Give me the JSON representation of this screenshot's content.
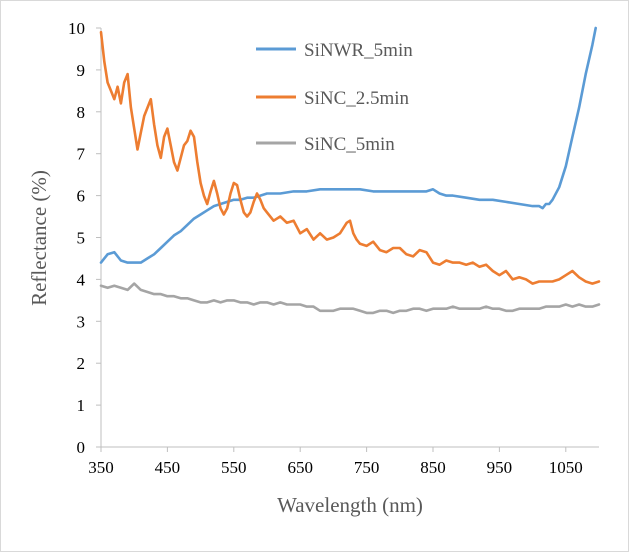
{
  "chart_data": {
    "type": "line",
    "title": "",
    "xlabel": "Wavelength (nm)",
    "ylabel": "Reflectance (%)",
    "xlim": [
      350,
      1100
    ],
    "ylim": [
      0,
      10
    ],
    "x_ticks": [
      350,
      450,
      550,
      650,
      750,
      850,
      950,
      1050
    ],
    "y_ticks": [
      0,
      1,
      2,
      3,
      4,
      5,
      6,
      7,
      8,
      9,
      10
    ],
    "grid": false,
    "legend_position": "top-center",
    "series": [
      {
        "name": "SiNWR_5min",
        "color": "#5b9bd5",
        "x": [
          350,
          360,
          370,
          380,
          390,
          400,
          410,
          420,
          430,
          440,
          450,
          460,
          470,
          480,
          490,
          500,
          510,
          520,
          530,
          540,
          550,
          560,
          570,
          580,
          590,
          600,
          620,
          640,
          660,
          680,
          700,
          720,
          740,
          760,
          780,
          800,
          820,
          840,
          850,
          860,
          870,
          880,
          900,
          920,
          940,
          960,
          980,
          1000,
          1005,
          1010,
          1015,
          1020,
          1025,
          1030,
          1040,
          1050,
          1060,
          1070,
          1080,
          1090,
          1095
        ],
        "y": [
          4.4,
          4.6,
          4.65,
          4.45,
          4.4,
          4.4,
          4.4,
          4.5,
          4.6,
          4.75,
          4.9,
          5.05,
          5.15,
          5.3,
          5.45,
          5.55,
          5.65,
          5.75,
          5.8,
          5.85,
          5.9,
          5.9,
          5.95,
          5.95,
          6.0,
          6.05,
          6.05,
          6.1,
          6.1,
          6.15,
          6.15,
          6.15,
          6.15,
          6.1,
          6.1,
          6.1,
          6.1,
          6.1,
          6.15,
          6.05,
          6.0,
          6.0,
          5.95,
          5.9,
          5.9,
          5.85,
          5.8,
          5.75,
          5.75,
          5.75,
          5.7,
          5.8,
          5.8,
          5.9,
          6.2,
          6.7,
          7.4,
          8.1,
          8.9,
          9.6,
          10.0
        ]
      },
      {
        "name": "SiNC_2.5min",
        "color": "#ed7d31",
        "x": [
          350,
          355,
          360,
          365,
          370,
          375,
          380,
          385,
          390,
          395,
          400,
          405,
          410,
          415,
          420,
          425,
          430,
          435,
          440,
          445,
          450,
          455,
          460,
          465,
          470,
          475,
          480,
          485,
          490,
          495,
          500,
          505,
          510,
          515,
          520,
          525,
          530,
          535,
          540,
          545,
          550,
          555,
          560,
          565,
          570,
          575,
          580,
          585,
          590,
          595,
          600,
          610,
          620,
          630,
          640,
          650,
          660,
          670,
          680,
          690,
          700,
          710,
          720,
          725,
          730,
          735,
          740,
          750,
          760,
          770,
          780,
          790,
          800,
          810,
          820,
          830,
          840,
          850,
          860,
          870,
          880,
          890,
          900,
          910,
          920,
          930,
          940,
          950,
          960,
          970,
          980,
          990,
          1000,
          1010,
          1020,
          1030,
          1040,
          1050,
          1060,
          1070,
          1080,
          1090,
          1100
        ],
        "y": [
          9.9,
          9.2,
          8.7,
          8.5,
          8.3,
          8.6,
          8.2,
          8.7,
          8.9,
          8.1,
          7.6,
          7.1,
          7.5,
          7.9,
          8.1,
          8.3,
          7.7,
          7.2,
          6.9,
          7.4,
          7.6,
          7.2,
          6.8,
          6.6,
          6.9,
          7.2,
          7.3,
          7.55,
          7.4,
          6.8,
          6.3,
          6.0,
          5.8,
          6.1,
          6.35,
          6.05,
          5.7,
          5.55,
          5.7,
          6.05,
          6.3,
          6.25,
          5.9,
          5.6,
          5.5,
          5.6,
          5.85,
          6.05,
          5.9,
          5.7,
          5.6,
          5.4,
          5.5,
          5.35,
          5.4,
          5.1,
          5.2,
          4.95,
          5.1,
          4.95,
          5.0,
          5.1,
          5.35,
          5.4,
          5.1,
          4.95,
          4.85,
          4.8,
          4.9,
          4.7,
          4.65,
          4.75,
          4.75,
          4.6,
          4.55,
          4.7,
          4.65,
          4.4,
          4.35,
          4.45,
          4.4,
          4.4,
          4.35,
          4.4,
          4.3,
          4.35,
          4.2,
          4.1,
          4.2,
          4.0,
          4.05,
          4.0,
          3.9,
          3.95,
          3.95,
          3.95,
          4.0,
          4.1,
          4.2,
          4.05,
          3.95,
          3.9,
          3.95
        ]
      },
      {
        "name": "SiNC_5min",
        "color": "#a5a5a5",
        "x": [
          350,
          360,
          370,
          380,
          390,
          400,
          410,
          420,
          430,
          440,
          450,
          460,
          470,
          480,
          490,
          500,
          510,
          520,
          530,
          540,
          550,
          560,
          570,
          580,
          590,
          600,
          610,
          620,
          630,
          640,
          650,
          660,
          670,
          680,
          690,
          700,
          710,
          720,
          730,
          740,
          750,
          760,
          770,
          780,
          790,
          800,
          810,
          820,
          830,
          840,
          850,
          860,
          870,
          880,
          890,
          900,
          910,
          920,
          930,
          940,
          950,
          960,
          970,
          980,
          990,
          1000,
          1010,
          1020,
          1030,
          1040,
          1050,
          1060,
          1070,
          1080,
          1090,
          1100
        ],
        "y": [
          3.85,
          3.8,
          3.85,
          3.8,
          3.75,
          3.9,
          3.75,
          3.7,
          3.65,
          3.65,
          3.6,
          3.6,
          3.55,
          3.55,
          3.5,
          3.45,
          3.45,
          3.5,
          3.45,
          3.5,
          3.5,
          3.45,
          3.45,
          3.4,
          3.45,
          3.45,
          3.4,
          3.45,
          3.4,
          3.4,
          3.4,
          3.35,
          3.35,
          3.25,
          3.25,
          3.25,
          3.3,
          3.3,
          3.3,
          3.25,
          3.2,
          3.2,
          3.25,
          3.25,
          3.2,
          3.25,
          3.25,
          3.3,
          3.3,
          3.25,
          3.3,
          3.3,
          3.3,
          3.35,
          3.3,
          3.3,
          3.3,
          3.3,
          3.35,
          3.3,
          3.3,
          3.25,
          3.25,
          3.3,
          3.3,
          3.3,
          3.3,
          3.35,
          3.35,
          3.35,
          3.4,
          3.35,
          3.4,
          3.35,
          3.35,
          3.4
        ]
      }
    ]
  }
}
